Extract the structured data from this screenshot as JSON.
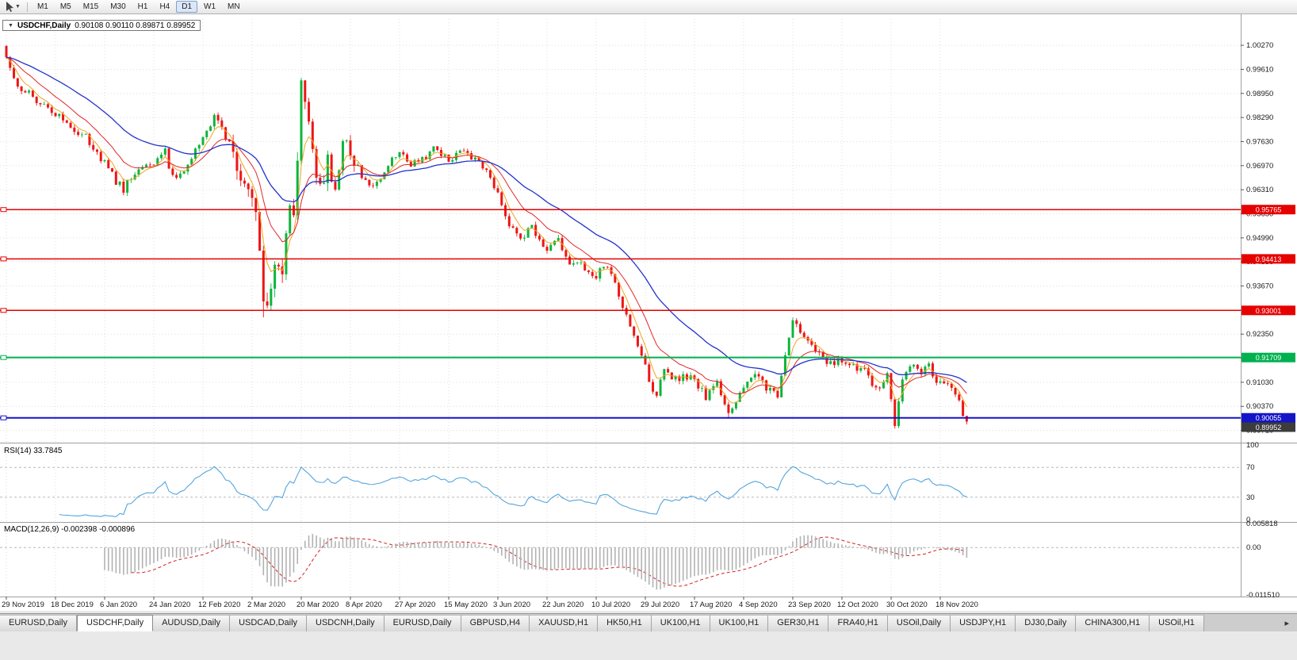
{
  "toolbar": {
    "timeframes": [
      "M1",
      "M5",
      "M15",
      "M30",
      "H1",
      "H4",
      "D1",
      "W1",
      "MN"
    ],
    "active": "D1"
  },
  "chart": {
    "title": "USDCHF,Daily",
    "ohlc_line": "0.90108 0.90110 0.89871 0.89952",
    "open": "0.90108",
    "high": "0.90110",
    "low": "0.89871",
    "close": "0.89952"
  },
  "levels": [
    {
      "price": 0.95765,
      "label": "0.95765",
      "color": "#e60000",
      "width": 1.5
    },
    {
      "price": 0.94413,
      "label": "0.94413",
      "color": "#e60000",
      "width": 1.5
    },
    {
      "price": 0.93001,
      "label": "0.93001",
      "color": "#e60000",
      "width": 1.5
    },
    {
      "price": 0.91709,
      "label": "0.91709",
      "color": "#00b14f",
      "width": 2
    },
    {
      "price": 0.90055,
      "label": "0.90055",
      "color": "#1414c8",
      "width": 2
    }
  ],
  "current_price": {
    "value": 0.89952,
    "label": "0.89952",
    "badge_color": "#3c3c3c"
  },
  "rsi": {
    "label": "RSI(14)",
    "value": "33.7845",
    "axis": [
      "100",
      "70",
      "30",
      "0"
    ],
    "upper": 70,
    "lower": 30,
    "color": "#55a5dd"
  },
  "macd": {
    "label": "MACD(12,26,9)",
    "values": "-0.002398 -0.000896",
    "axis_max": "0.005818",
    "axis_zero": "0.00",
    "axis_min": "-0.011510",
    "axis_max_value": 0.005818,
    "axis_min_value": -0.01151,
    "hist_color": "#b2b2b2",
    "signal_color": "#d42020"
  },
  "colors": {
    "bull": "#0db53c",
    "bear": "#ee1515",
    "ma_fast": "#efa522",
    "ma_mid": "#e02828",
    "ma_slow": "#2233cc"
  },
  "tabs": {
    "active_index": 1,
    "items": [
      "EURUSD,Daily",
      "USDCHF,Daily",
      "AUDUSD,Daily",
      "USDCAD,Daily",
      "USDCNH,Daily",
      "EURUSD,Daily",
      "GBPUSD,H4",
      "XAUUSD,H1",
      "HK50,H1",
      "UK100,H1",
      "UK100,H1",
      "GER30,H1",
      "FRA40,H1",
      "USOil,Daily",
      "USDJPY,H1",
      "DJ30,Daily",
      "CHINA300,H1",
      "USOil,H1"
    ],
    "scroll_right": "▸"
  },
  "chart_data": {
    "type": "candlestick",
    "symbol": "USDCHF",
    "timeframe": "Daily",
    "candle_count": 255,
    "price_max": 1.0099,
    "price_min": 0.8944,
    "seed": 13,
    "price_ticks": [
      1.0027,
      0.9961,
      0.9895,
      0.9829,
      0.9763,
      0.9697,
      0.9631,
      0.9565,
      0.9499,
      0.9433,
      0.9367,
      0.9301,
      0.9235,
      0.9169,
      0.9103,
      0.9037,
      0.8971
    ],
    "dates": [
      "29 Nov 2019",
      "18 Dec 2019",
      "6 Jan 2020",
      "24 Jan 2020",
      "12 Feb 2020",
      "2 Mar 2020",
      "20 Mar 2020",
      "8 Apr 2020",
      "27 Apr 2020",
      "15 May 2020",
      "3 Jun 2020",
      "22 Jun 2020",
      "10 Jul 2020",
      "29 Jul 2020",
      "17 Aug 2020",
      "4 Sep 2020",
      "23 Sep 2020",
      "12 Oct 2020",
      "30 Oct 2020",
      "18 Nov 2020"
    ],
    "close_anchors": [
      [
        0,
        1.0
      ],
      [
        2,
        0.9932
      ],
      [
        5,
        0.9901
      ],
      [
        9,
        0.9869
      ],
      [
        13,
        0.9838
      ],
      [
        17,
        0.9801
      ],
      [
        21,
        0.9776
      ],
      [
        26,
        0.9706
      ],
      [
        29,
        0.9652
      ],
      [
        31,
        0.9633
      ],
      [
        34,
        0.968
      ],
      [
        39,
        0.97
      ],
      [
        42,
        0.9736
      ],
      [
        44,
        0.9662
      ],
      [
        47,
        0.969
      ],
      [
        50,
        0.9741
      ],
      [
        53,
        0.979
      ],
      [
        55,
        0.9826
      ],
      [
        58,
        0.978
      ],
      [
        61,
        0.9706
      ],
      [
        64,
        0.9621
      ],
      [
        66,
        0.9556
      ],
      [
        68,
        0.9338
      ],
      [
        69,
        0.9292
      ],
      [
        71,
        0.9421
      ],
      [
        73,
        0.9372
      ],
      [
        75,
        0.9601
      ],
      [
        76,
        0.9531
      ],
      [
        78,
        0.9901
      ],
      [
        79,
        0.9861
      ],
      [
        81,
        0.9741
      ],
      [
        83,
        0.9641
      ],
      [
        85,
        0.9706
      ],
      [
        87,
        0.9651
      ],
      [
        89,
        0.9771
      ],
      [
        91,
        0.9726
      ],
      [
        94,
        0.9672
      ],
      [
        97,
        0.9636
      ],
      [
        100,
        0.9681
      ],
      [
        104,
        0.9742
      ],
      [
        107,
        0.9701
      ],
      [
        110,
        0.9712
      ],
      [
        113,
        0.9746
      ],
      [
        117,
        0.9712
      ],
      [
        121,
        0.9736
      ],
      [
        124,
        0.9712
      ],
      [
        127,
        0.9686
      ],
      [
        130,
        0.9626
      ],
      [
        133,
        0.9532
      ],
      [
        136,
        0.9496
      ],
      [
        139,
        0.9526
      ],
      [
        143,
        0.9466
      ],
      [
        146,
        0.9488
      ],
      [
        149,
        0.9436
      ],
      [
        152,
        0.9428
      ],
      [
        156,
        0.9396
      ],
      [
        159,
        0.9428
      ],
      [
        162,
        0.9346
      ],
      [
        165,
        0.9246
      ],
      [
        168,
        0.9176
      ],
      [
        170,
        0.9106
      ],
      [
        172,
        0.9068
      ],
      [
        174,
        0.9131
      ],
      [
        177,
        0.9112
      ],
      [
        180,
        0.9121
      ],
      [
        182,
        0.9106
      ],
      [
        185,
        0.9062
      ],
      [
        188,
        0.9098
      ],
      [
        191,
        0.9026
      ],
      [
        194,
        0.9076
      ],
      [
        198,
        0.9126
      ],
      [
        201,
        0.9086
      ],
      [
        204,
        0.9068
      ],
      [
        206,
        0.9181
      ],
      [
        208,
        0.9268
      ],
      [
        210,
        0.9236
      ],
      [
        213,
        0.9196
      ],
      [
        216,
        0.9171
      ],
      [
        218,
        0.9151
      ],
      [
        221,
        0.9168
      ],
      [
        224,
        0.9142
      ],
      [
        227,
        0.9152
      ],
      [
        229,
        0.9088
      ],
      [
        231,
        0.9076
      ],
      [
        233,
        0.9131
      ],
      [
        235,
        0.8988
      ],
      [
        237,
        0.9121
      ],
      [
        239,
        0.9156
      ],
      [
        242,
        0.9128
      ],
      [
        244,
        0.9151
      ],
      [
        246,
        0.9108
      ],
      [
        249,
        0.909
      ],
      [
        252,
        0.9052
      ],
      [
        253,
        0.9012
      ],
      [
        254,
        0.89952
      ]
    ],
    "vol_zones": [
      [
        0,
        59,
        0.0011
      ],
      [
        60,
        92,
        0.003
      ],
      [
        93,
        128,
        0.0009
      ],
      [
        129,
        160,
        0.0011
      ],
      [
        161,
        200,
        0.0012
      ],
      [
        201,
        254,
        0.0011
      ]
    ],
    "forced_extremes": [
      {
        "i": 0,
        "high": 1.0027
      },
      {
        "i": 68,
        "low": 0.9281
      },
      {
        "i": 78,
        "high": 0.9919
      },
      {
        "i": 191,
        "low": 0.9003
      },
      {
        "i": 235,
        "low": 0.8976
      }
    ],
    "last_candle": {
      "open": 0.90108,
      "high": 0.9011,
      "low": 0.89871,
      "close": 0.89952
    },
    "indicators": {
      "ma_fast_period": 5,
      "ma_mid_period": 13,
      "ma_slow_period": 34,
      "rsi_period": 14,
      "macd": [
        12,
        26,
        9
      ]
    }
  }
}
